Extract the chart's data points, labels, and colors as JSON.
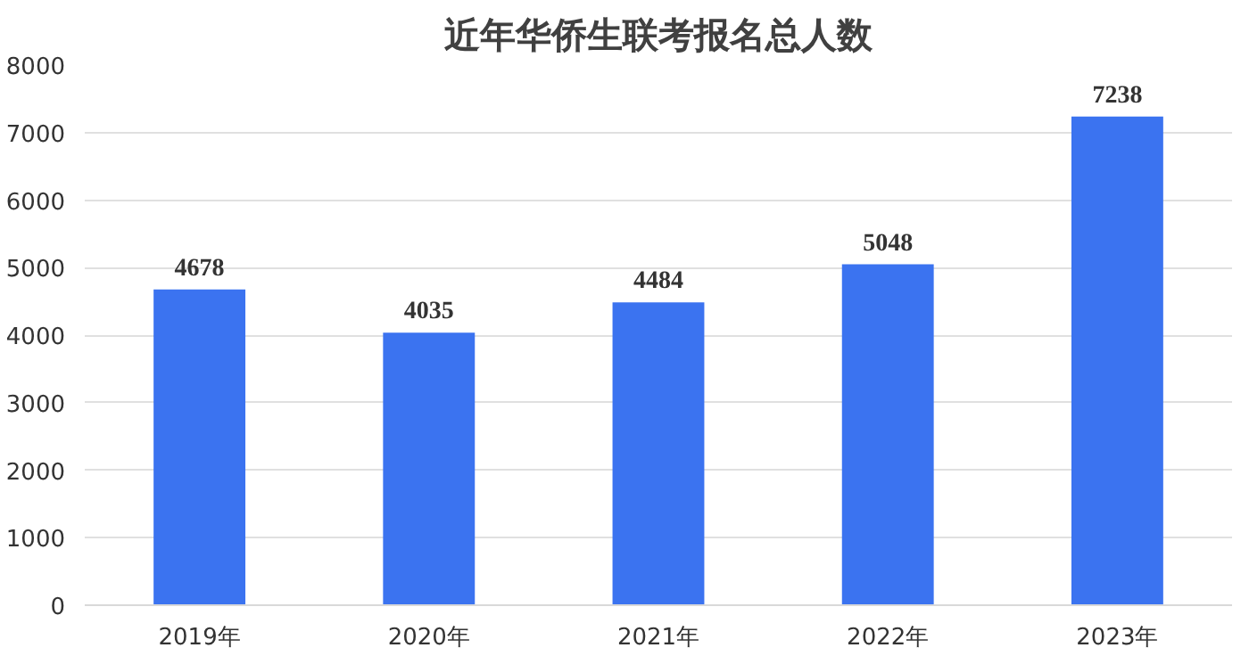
{
  "chart_data": {
    "type": "bar",
    "title": "近年华侨生联考报名总人数",
    "categories": [
      "2019年",
      "2020年",
      "2021年",
      "2022年",
      "2023年"
    ],
    "values": [
      4678,
      4035,
      4484,
      5048,
      7238
    ],
    "color": "#3b73f0",
    "ylim": [
      0,
      8000
    ],
    "yticks": [
      0,
      1000,
      2000,
      3000,
      4000,
      5000,
      6000,
      7000,
      8000
    ],
    "grid": "y",
    "data_labels": true
  }
}
